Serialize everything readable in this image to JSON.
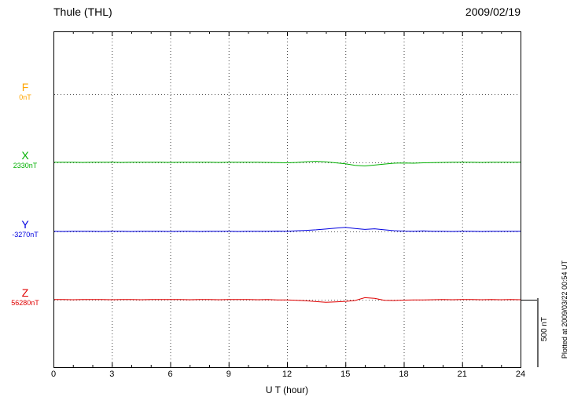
{
  "page": {
    "title": "Thule (THL)",
    "date": "2009/02/19",
    "plotted_at": "Plotted at 2009/03/22 00:54 UT"
  },
  "chart_data": {
    "type": "line",
    "title": "Thule (THL)",
    "date": "2009/02/19",
    "xlabel": "U T (hour)",
    "xlim": [
      0,
      24
    ],
    "x_ticks": [
      0,
      3,
      6,
      9,
      12,
      15,
      18,
      21,
      24
    ],
    "x_step_hours": 0.5,
    "grid": "vertical-dotted-every-3h",
    "scale_bar": {
      "label": "500 nT",
      "nT": 500
    },
    "units": "values are deviations in nT from each component baseline",
    "series": [
      {
        "name": "F",
        "baseline_label": "0nT",
        "color": "#FFA500",
        "style": "dotted-baseline-only",
        "values": [
          0,
          0,
          0,
          0,
          0,
          0,
          0,
          0,
          0,
          0,
          0,
          0,
          0,
          0,
          0,
          0,
          0,
          0,
          0,
          0,
          0,
          0,
          0,
          0,
          0,
          0,
          0,
          0,
          0,
          0,
          0,
          0,
          0,
          0,
          0,
          0,
          0,
          0,
          0,
          0,
          0,
          0,
          0,
          0,
          0,
          0,
          0,
          0,
          0
        ]
      },
      {
        "name": "X",
        "baseline_label": "2330nT",
        "color": "#00B000",
        "style": "line",
        "values": [
          2,
          1,
          2,
          0,
          1,
          2,
          1,
          0,
          1,
          2,
          1,
          1,
          0,
          1,
          1,
          2,
          1,
          0,
          1,
          1,
          2,
          1,
          0,
          -2,
          -3,
          0,
          5,
          8,
          4,
          -3,
          -10,
          -22,
          -26,
          -20,
          -12,
          -6,
          -4,
          -6,
          -3,
          -2,
          0,
          1,
          2,
          1,
          0,
          1,
          1,
          2,
          1
        ]
      },
      {
        "name": "Y",
        "baseline_label": "-3270nT",
        "color": "#0000E0",
        "style": "line",
        "values": [
          1,
          0,
          1,
          2,
          1,
          0,
          1,
          1,
          0,
          1,
          2,
          1,
          0,
          1,
          1,
          0,
          1,
          2,
          1,
          0,
          1,
          1,
          2,
          3,
          2,
          5,
          8,
          12,
          18,
          25,
          30,
          22,
          15,
          20,
          12,
          6,
          3,
          2,
          4,
          2,
          1,
          0,
          1,
          1,
          0,
          1,
          2,
          1,
          1
        ]
      },
      {
        "name": "Z",
        "baseline_label": "56280nT",
        "color": "#E00000",
        "style": "line",
        "values": [
          1,
          1,
          0,
          1,
          2,
          1,
          0,
          1,
          1,
          0,
          1,
          1,
          2,
          1,
          0,
          1,
          1,
          0,
          1,
          2,
          1,
          0,
          1,
          -1,
          -2,
          -4,
          -8,
          -14,
          -19,
          -16,
          -12,
          -6,
          15,
          10,
          -4,
          -6,
          -3,
          -2,
          -1,
          0,
          1,
          0,
          1,
          1,
          0,
          1,
          0,
          1,
          0
        ]
      }
    ]
  }
}
